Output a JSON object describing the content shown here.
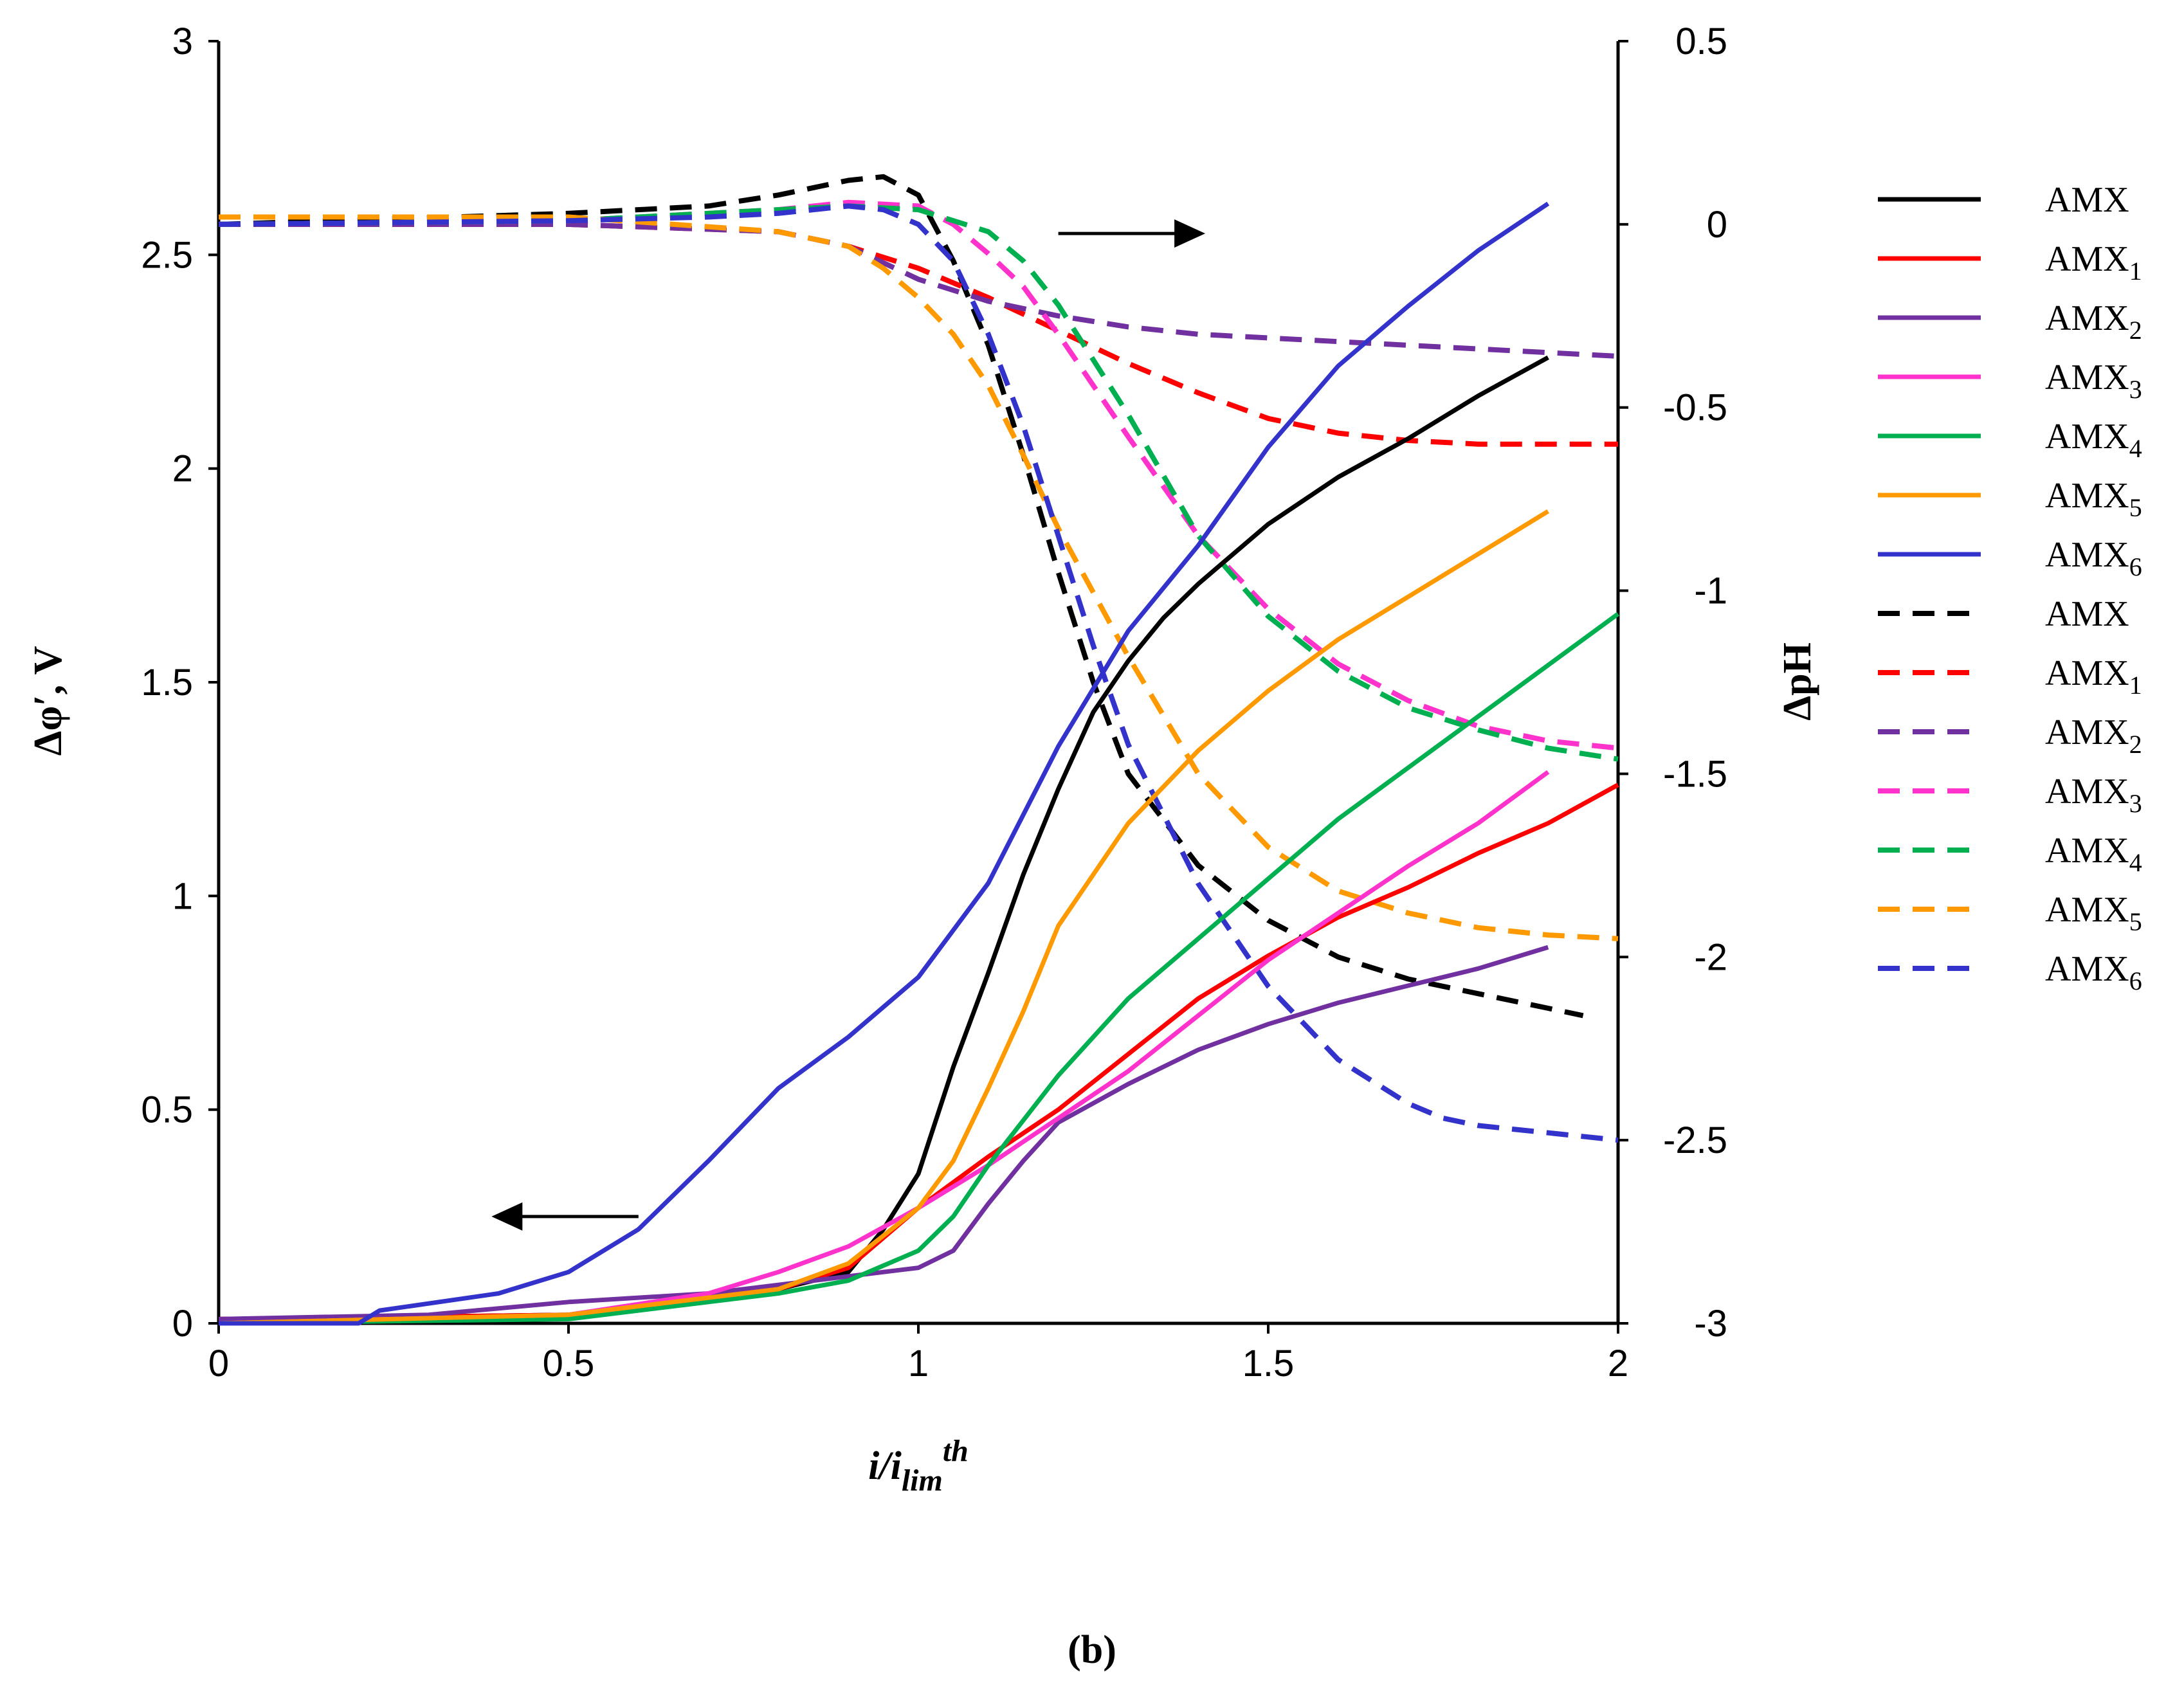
{
  "chart_data": {
    "type": "line",
    "panel_label": "(b)",
    "xlabel": {
      "main": "i/i",
      "sub": "lim",
      "sup": "th"
    },
    "ylabel_left": "Δφ′, V",
    "ylabel_right": "ΔpH",
    "xlim": [
      0,
      2
    ],
    "ylim_left": [
      0,
      3
    ],
    "ylim_right": [
      -3,
      0.5
    ],
    "x_ticks": [
      "0",
      "0.5",
      "1",
      "1.5",
      "2"
    ],
    "y_left_ticks": [
      "0",
      "0.5",
      "1",
      "1.5",
      "2",
      "2.5",
      "3"
    ],
    "y_right_ticks": [
      "-3",
      "-2.5",
      "-2",
      "-1.5",
      "-1",
      "-0.5",
      "0",
      "0.5"
    ],
    "grid": false,
    "legend_position": "right",
    "annotations": [
      {
        "type": "arrow",
        "direction": "left",
        "meaning": "left axis (Δφ′)",
        "from": [
          0.6,
          0.25
        ],
        "to": [
          0.39,
          0.25
        ]
      },
      {
        "type": "arrow",
        "direction": "right",
        "meaning": "right axis (ΔpH)",
        "from": [
          1.2,
          2.55
        ],
        "to": [
          1.41,
          2.55
        ]
      }
    ],
    "series": [
      {
        "name": "AMX",
        "base": "AMX",
        "sub": "",
        "color": "#000000",
        "dash": false,
        "axis": "left",
        "x": [
          0,
          0.5,
          0.8,
          0.9,
          0.95,
          1.0,
          1.05,
          1.1,
          1.15,
          1.2,
          1.25,
          1.3,
          1.35,
          1.4,
          1.5,
          1.6,
          1.7,
          1.8,
          1.9
        ],
        "y": [
          0.01,
          0.02,
          0.08,
          0.12,
          0.22,
          0.35,
          0.6,
          0.82,
          1.05,
          1.25,
          1.43,
          1.55,
          1.65,
          1.73,
          1.87,
          1.98,
          2.07,
          2.17,
          2.26
        ]
      },
      {
        "name": "AMX1",
        "base": "AMX",
        "sub": "1",
        "color": "#ff0000",
        "dash": false,
        "axis": "left",
        "x": [
          0,
          0.5,
          0.8,
          0.9,
          1.0,
          1.1,
          1.2,
          1.3,
          1.4,
          1.5,
          1.6,
          1.7,
          1.8,
          1.9,
          2.0
        ],
        "y": [
          0.01,
          0.02,
          0.08,
          0.13,
          0.27,
          0.39,
          0.5,
          0.63,
          0.76,
          0.86,
          0.95,
          1.02,
          1.1,
          1.17,
          1.26
        ]
      },
      {
        "name": "AMX2",
        "base": "AMX",
        "sub": "2",
        "color": "#7030a0",
        "dash": false,
        "axis": "left",
        "x": [
          0,
          0.3,
          0.5,
          0.7,
          0.9,
          1.0,
          1.05,
          1.1,
          1.15,
          1.2,
          1.3,
          1.4,
          1.5,
          1.6,
          1.7,
          1.8,
          1.9
        ],
        "y": [
          0.01,
          0.02,
          0.05,
          0.07,
          0.11,
          0.13,
          0.17,
          0.28,
          0.38,
          0.47,
          0.56,
          0.64,
          0.7,
          0.75,
          0.79,
          0.83,
          0.88
        ]
      },
      {
        "name": "AMX3",
        "base": "AMX",
        "sub": "3",
        "color": "#ff33cc",
        "dash": false,
        "axis": "left",
        "x": [
          0,
          0.5,
          0.7,
          0.8,
          0.9,
          1.0,
          1.1,
          1.2,
          1.3,
          1.4,
          1.5,
          1.6,
          1.7,
          1.8,
          1.9
        ],
        "y": [
          0.0,
          0.02,
          0.07,
          0.12,
          0.18,
          0.27,
          0.37,
          0.48,
          0.59,
          0.72,
          0.85,
          0.96,
          1.07,
          1.17,
          1.29
        ]
      },
      {
        "name": "AMX4",
        "base": "AMX",
        "sub": "4",
        "color": "#00b050",
        "dash": false,
        "axis": "left",
        "x": [
          0,
          0.5,
          0.8,
          0.9,
          1.0,
          1.05,
          1.1,
          1.2,
          1.3,
          1.4,
          1.5,
          1.6,
          1.7,
          1.8,
          1.9,
          2.0
        ],
        "y": [
          0.0,
          0.01,
          0.07,
          0.1,
          0.17,
          0.25,
          0.37,
          0.58,
          0.76,
          0.9,
          1.04,
          1.18,
          1.3,
          1.42,
          1.54,
          1.66
        ]
      },
      {
        "name": "AMX5",
        "base": "AMX",
        "sub": "5",
        "color": "#ff9900",
        "dash": false,
        "axis": "left",
        "x": [
          0,
          0.5,
          0.8,
          0.9,
          1.0,
          1.05,
          1.1,
          1.15,
          1.2,
          1.3,
          1.4,
          1.5,
          1.6,
          1.7,
          1.8,
          1.9
        ],
        "y": [
          0.0,
          0.02,
          0.08,
          0.14,
          0.27,
          0.38,
          0.55,
          0.73,
          0.93,
          1.17,
          1.34,
          1.48,
          1.6,
          1.7,
          1.8,
          1.9
        ]
      },
      {
        "name": "AMX6",
        "base": "AMX",
        "sub": "6",
        "color": "#3333cc",
        "dash": false,
        "axis": "left",
        "x": [
          0,
          0.2,
          0.23,
          0.4,
          0.5,
          0.6,
          0.7,
          0.8,
          0.9,
          1.0,
          1.1,
          1.2,
          1.3,
          1.4,
          1.5,
          1.6,
          1.7,
          1.8,
          1.9
        ],
        "y": [
          0.0,
          0.0,
          0.03,
          0.07,
          0.12,
          0.22,
          0.38,
          0.55,
          0.67,
          0.81,
          1.03,
          1.35,
          1.62,
          1.82,
          2.05,
          2.24,
          2.38,
          2.51,
          2.62
        ]
      },
      {
        "name": "AMX",
        "base": "AMX",
        "sub": "",
        "color": "#000000",
        "dash": true,
        "axis": "right",
        "x": [
          0,
          0.5,
          0.7,
          0.8,
          0.9,
          0.95,
          1.0,
          1.05,
          1.1,
          1.15,
          1.2,
          1.25,
          1.3,
          1.4,
          1.5,
          1.6,
          1.7,
          1.8,
          1.9,
          1.95
        ],
        "y": [
          0.0,
          0.03,
          0.05,
          0.08,
          0.12,
          0.13,
          0.08,
          -0.1,
          -0.33,
          -0.63,
          -0.95,
          -1.25,
          -1.5,
          -1.75,
          -1.9,
          -2.0,
          -2.06,
          -2.1,
          -2.14,
          -2.16
        ]
      },
      {
        "name": "AMX1",
        "base": "AMX",
        "sub": "1",
        "color": "#ff0000",
        "dash": true,
        "axis": "right",
        "x": [
          0,
          0.5,
          0.8,
          0.9,
          1.0,
          1.1,
          1.2,
          1.3,
          1.4,
          1.5,
          1.6,
          1.7,
          1.8,
          1.9,
          2.0
        ],
        "y": [
          0.0,
          0.0,
          -0.02,
          -0.06,
          -0.12,
          -0.2,
          -0.29,
          -0.38,
          -0.46,
          -0.53,
          -0.57,
          -0.59,
          -0.6,
          -0.6,
          -0.6
        ]
      },
      {
        "name": "AMX2",
        "base": "AMX",
        "sub": "2",
        "color": "#7030a0",
        "dash": true,
        "axis": "right",
        "x": [
          0,
          0.5,
          0.8,
          0.9,
          1.0,
          1.1,
          1.2,
          1.3,
          1.4,
          1.5,
          1.6,
          1.7,
          1.8,
          1.9,
          2.0
        ],
        "y": [
          0.0,
          0.0,
          -0.02,
          -0.06,
          -0.15,
          -0.21,
          -0.25,
          -0.28,
          -0.3,
          -0.31,
          -0.32,
          -0.33,
          -0.34,
          -0.35,
          -0.36
        ]
      },
      {
        "name": "AMX3",
        "base": "AMX",
        "sub": "3",
        "color": "#ff33cc",
        "dash": true,
        "axis": "right",
        "x": [
          0,
          0.5,
          0.8,
          0.9,
          1.0,
          1.05,
          1.1,
          1.15,
          1.2,
          1.3,
          1.4,
          1.5,
          1.6,
          1.7,
          1.8,
          1.9,
          2.0
        ],
        "y": [
          0.0,
          0.01,
          0.04,
          0.06,
          0.05,
          0.0,
          -0.08,
          -0.17,
          -0.3,
          -0.58,
          -0.85,
          -1.05,
          -1.2,
          -1.3,
          -1.37,
          -1.41,
          -1.43
        ]
      },
      {
        "name": "AMX4",
        "base": "AMX",
        "sub": "4",
        "color": "#00b050",
        "dash": true,
        "axis": "right",
        "x": [
          0,
          0.5,
          0.8,
          0.9,
          1.0,
          1.1,
          1.15,
          1.2,
          1.3,
          1.4,
          1.5,
          1.6,
          1.7,
          1.8,
          1.9,
          2.0
        ],
        "y": [
          0.0,
          0.01,
          0.04,
          0.05,
          0.04,
          -0.02,
          -0.1,
          -0.22,
          -0.52,
          -0.85,
          -1.07,
          -1.22,
          -1.32,
          -1.38,
          -1.43,
          -1.46
        ]
      },
      {
        "name": "AMX5",
        "base": "AMX",
        "sub": "5",
        "color": "#ff9900",
        "dash": true,
        "axis": "right",
        "x": [
          0,
          0.5,
          0.8,
          0.9,
          0.95,
          1.0,
          1.05,
          1.1,
          1.15,
          1.2,
          1.3,
          1.4,
          1.5,
          1.6,
          1.7,
          1.8,
          1.9,
          2.0
        ],
        "y": [
          0.02,
          0.02,
          -0.02,
          -0.06,
          -0.12,
          -0.2,
          -0.3,
          -0.44,
          -0.63,
          -0.83,
          -1.18,
          -1.5,
          -1.7,
          -1.82,
          -1.88,
          -1.92,
          -1.94,
          -1.95
        ]
      },
      {
        "name": "AMX6",
        "base": "AMX",
        "sub": "6",
        "color": "#3333cc",
        "dash": true,
        "axis": "right",
        "x": [
          0,
          0.5,
          0.7,
          0.8,
          0.9,
          0.95,
          1.0,
          1.05,
          1.1,
          1.15,
          1.2,
          1.25,
          1.3,
          1.4,
          1.5,
          1.6,
          1.7,
          1.75,
          1.8,
          1.9,
          2.0
        ],
        "y": [
          0.0,
          0.01,
          0.02,
          0.03,
          0.05,
          0.04,
          0.0,
          -0.1,
          -0.3,
          -0.55,
          -0.85,
          -1.15,
          -1.42,
          -1.8,
          -2.08,
          -2.28,
          -2.4,
          -2.44,
          -2.46,
          -2.48,
          -2.5
        ]
      }
    ]
  }
}
